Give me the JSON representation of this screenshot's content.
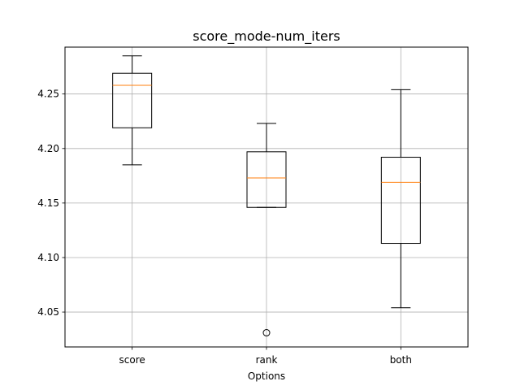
{
  "chart_data": {
    "type": "box",
    "title": "score_mode-num_iters",
    "xlabel": "Options",
    "ylabel": "",
    "categories": [
      "score",
      "rank",
      "both"
    ],
    "ylim": [
      4.018,
      4.293
    ],
    "yticks": [
      4.05,
      4.1,
      4.15,
      4.2,
      4.25
    ],
    "ytick_labels": [
      "4.05",
      "4.10",
      "4.15",
      "4.20",
      "4.25"
    ],
    "grid": true,
    "boxes": [
      {
        "category": "score",
        "whisker_low": 4.185,
        "q1": 4.219,
        "median": 4.258,
        "q3": 4.269,
        "whisker_high": 4.285,
        "outliers": []
      },
      {
        "category": "rank",
        "whisker_low": 4.146,
        "q1": 4.146,
        "median": 4.173,
        "q3": 4.197,
        "whisker_high": 4.223,
        "outliers": [
          4.031
        ]
      },
      {
        "category": "both",
        "whisker_low": 4.054,
        "q1": 4.113,
        "median": 4.169,
        "q3": 4.192,
        "whisker_high": 4.254,
        "outliers": []
      }
    ],
    "colors": {
      "box": "#000000",
      "median": "#ff7f0e",
      "grid": "#b0b0b0"
    }
  }
}
